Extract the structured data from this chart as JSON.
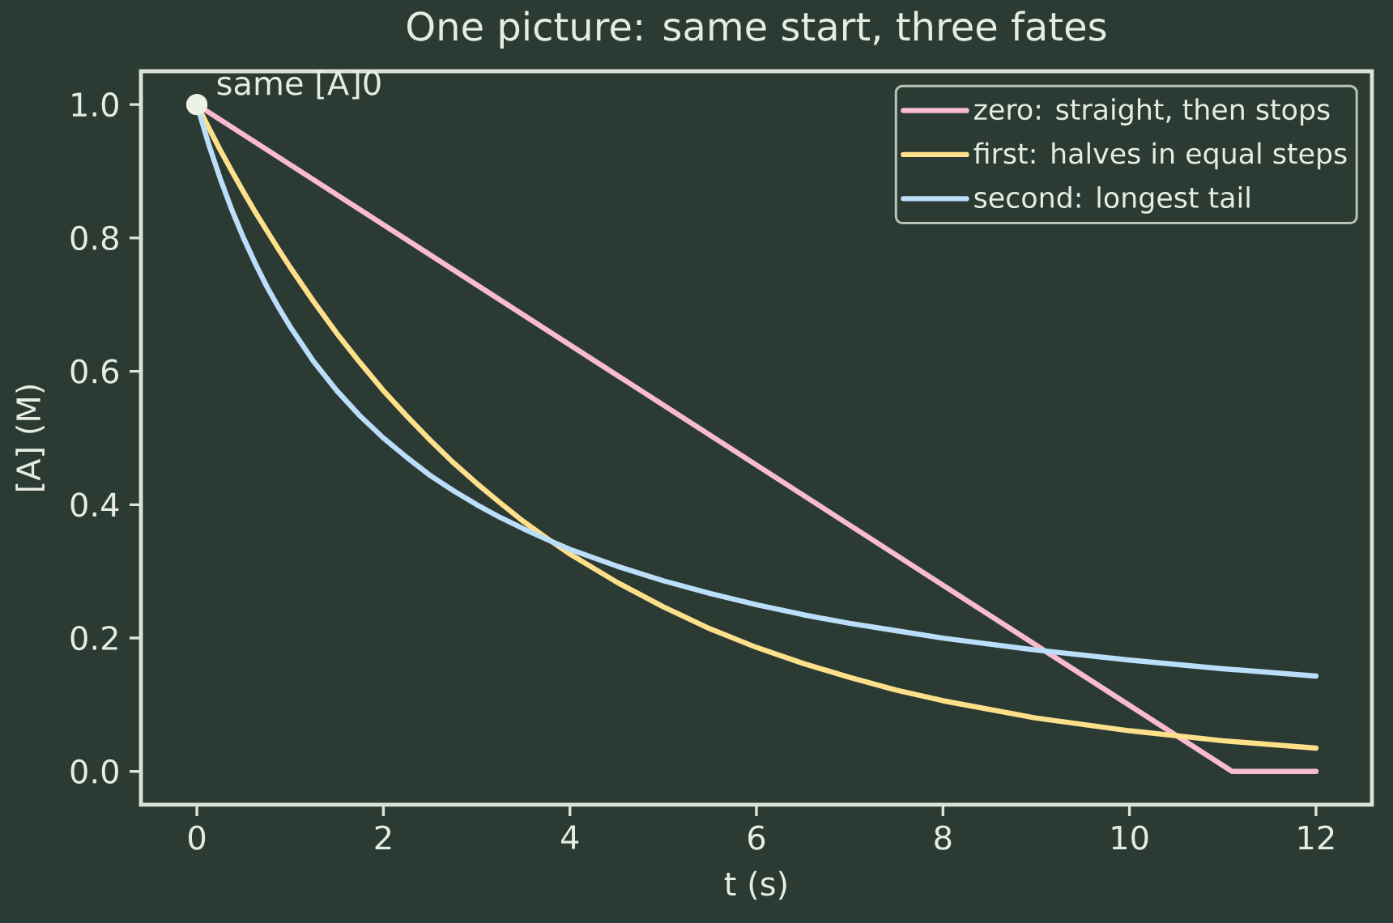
{
  "chart_data": {
    "type": "line",
    "title": "One picture: same start, three fates",
    "xlabel": "t (s)",
    "ylabel": "[A] (M)",
    "xlim": [
      -0.6,
      12.6
    ],
    "ylim": [
      -0.05,
      1.05
    ],
    "xticks": [
      0,
      2,
      4,
      6,
      8,
      10,
      12
    ],
    "yticks": [
      {
        "value": 0,
        "label": "0.0"
      },
      0.2,
      0.4,
      0.6,
      0.8,
      {
        "value": 1,
        "label": "1.0"
      }
    ],
    "grid": false,
    "legend": "top right",
    "line_style": "solid",
    "series": [
      {
        "name": "zero: straight, then stops",
        "color": "#f8bbd0",
        "x": [
          0,
          11.1,
          12
        ],
        "values": [
          1,
          0,
          0
        ]
      },
      {
        "name": "first: halves in equal steps",
        "color": "#ffe08a",
        "x": [
          0,
          0.125,
          0.25,
          0.375,
          0.5,
          0.625,
          0.75,
          0.875,
          1,
          1.25,
          1.5,
          1.75,
          2,
          2.25,
          2.5,
          2.75,
          3,
          3.25,
          3.5,
          3.75,
          4,
          4.5,
          5,
          5.5,
          6,
          6.5,
          7,
          7.5,
          8,
          9,
          10,
          11,
          12
        ],
        "values": [
          1,
          0.966,
          0.932,
          0.9,
          0.869,
          0.839,
          0.811,
          0.783,
          0.756,
          0.705,
          0.657,
          0.613,
          0.571,
          0.533,
          0.497,
          0.463,
          0.432,
          0.403,
          0.375,
          0.35,
          0.326,
          0.284,
          0.247,
          0.214,
          0.186,
          0.162,
          0.141,
          0.122,
          0.106,
          0.08,
          0.061,
          0.046,
          0.035
        ]
      },
      {
        "name": "second: longest tail",
        "color": "#bbdefb",
        "x": [
          0,
          0.125,
          0.25,
          0.375,
          0.5,
          0.625,
          0.75,
          0.875,
          1,
          1.25,
          1.5,
          1.75,
          2,
          2.25,
          2.5,
          2.75,
          3,
          3.25,
          3.5,
          3.75,
          4,
          4.5,
          5,
          5.5,
          6,
          6.5,
          7,
          7.5,
          8,
          9,
          10,
          11,
          12
        ],
        "values": [
          1,
          0.941,
          0.889,
          0.842,
          0.8,
          0.762,
          0.727,
          0.696,
          0.667,
          0.615,
          0.571,
          0.533,
          0.5,
          0.471,
          0.444,
          0.421,
          0.4,
          0.381,
          0.364,
          0.348,
          0.333,
          0.308,
          0.286,
          0.267,
          0.25,
          0.235,
          0.222,
          0.211,
          0.2,
          0.182,
          0.167,
          0.154,
          0.143
        ]
      },
      {
        "type": "scatter",
        "color": "#eef2e6",
        "marker": "circle",
        "x": [
          0
        ],
        "values": [
          1
        ]
      }
    ],
    "annotations": [
      {
        "text": "same [A]0",
        "x": 0,
        "y": 1
      }
    ]
  }
}
